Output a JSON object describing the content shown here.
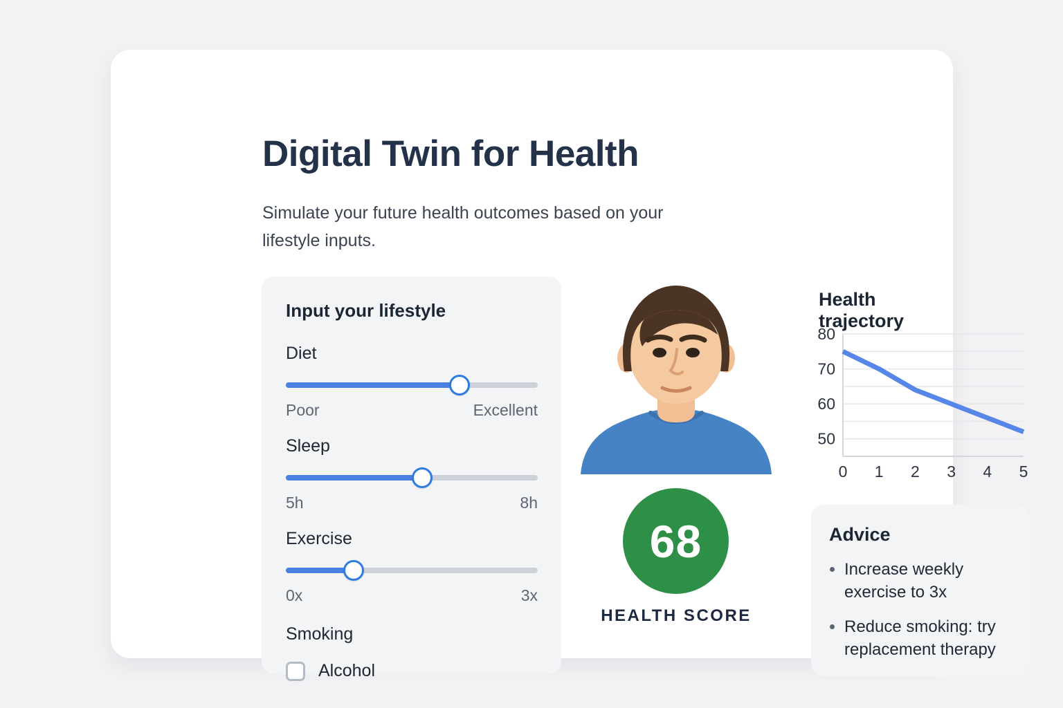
{
  "page": {
    "title": "Digital Twin for Health",
    "subtitle": "Simulate your future health outcomes based on your lifestyle inputs."
  },
  "lifestyle": {
    "heading": "Input your lifestyle",
    "sliders": [
      {
        "id": "diet",
        "label": "Diet",
        "min_label": "Poor",
        "max_label": "Excellent",
        "percent": 69
      },
      {
        "id": "sleep",
        "label": "Sleep",
        "min_label": "5h",
        "max_label": "8h",
        "percent": 54
      },
      {
        "id": "exercise",
        "label": "Exercise",
        "min_label": "0x",
        "max_label": "3x",
        "percent": 27
      }
    ],
    "smoking_label": "Smoking",
    "alcohol_checkbox": {
      "label": "Alcohol",
      "checked": false
    }
  },
  "score": {
    "value": "68",
    "label": "HEALTH SCORE",
    "color": "#2e8f46"
  },
  "chart_data": {
    "type": "line",
    "title": "Health trajectory",
    "x": [
      0,
      1,
      2,
      3,
      4,
      5
    ],
    "series": [
      {
        "values": [
          75,
          70,
          64,
          60,
          56,
          52
        ]
      }
    ],
    "xlabel": "",
    "ylabel": "",
    "ylim": [
      45,
      80
    ],
    "yticks": [
      50,
      60,
      70,
      80
    ],
    "gridline_step": 5,
    "grid": true,
    "legend": false,
    "line_color": "#5586e8"
  },
  "advice": {
    "heading": "Advice",
    "items": [
      "Increase weekly exercise to 3x",
      "Reduce smoking: try replacement therapy"
    ]
  },
  "colors": {
    "accent_blue": "#4a80e2",
    "score_green": "#2e8f46",
    "chart_line": "#5586e8"
  }
}
